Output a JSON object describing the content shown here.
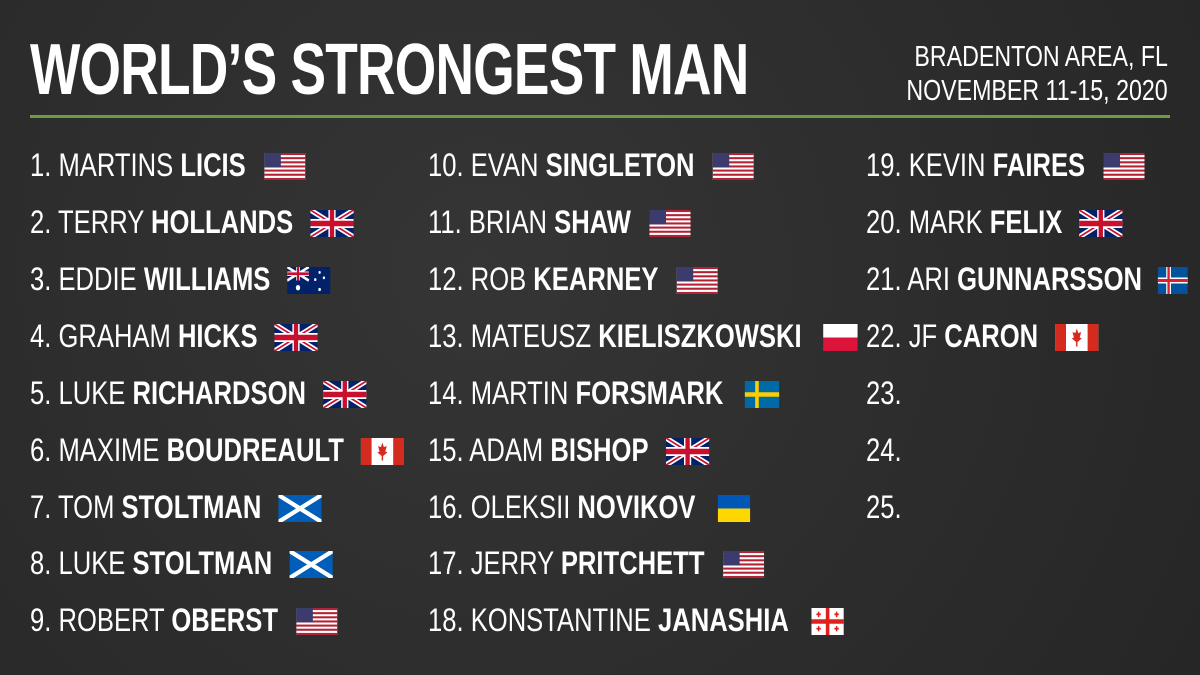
{
  "header": {
    "title": "WORLD’S STRONGEST MAN",
    "location": "BRADENTON AREA, FL",
    "dates": "NOVEMBER 11-15, 2020"
  },
  "entries": [
    {
      "number": "1.",
      "first": "MARTINS",
      "last": "LICIS"
    },
    {
      "number": "2.",
      "first": "TERRY",
      "last": "HOLLANDS"
    },
    {
      "number": "3.",
      "first": "EDDIE",
      "last": "WILLIAMS"
    },
    {
      "number": "4.",
      "first": "GRAHAM",
      "last": "HICKS"
    },
    {
      "number": "5.",
      "first": "LUKE",
      "last": "RICHARDSON"
    },
    {
      "number": "6.",
      "first": "MAXIME",
      "last": "BOUDREAULT"
    },
    {
      "number": "7.",
      "first": "TOM",
      "last": "STOLTMAN"
    },
    {
      "number": "8.",
      "first": "LUKE",
      "last": "STOLTMAN"
    },
    {
      "number": "9.",
      "first": "ROBERT",
      "last": "OBERST"
    },
    {
      "number": "10.",
      "first": "EVAN",
      "last": "SINGLETON"
    },
    {
      "number": "11.",
      "first": "BRIAN",
      "last": "SHAW"
    },
    {
      "number": "12.",
      "first": "ROB",
      "last": "KEARNEY"
    },
    {
      "number": "13.",
      "first": "MATEUSZ",
      "last": "KIELISZKOWSKI"
    },
    {
      "number": "14.",
      "first": "MARTIN",
      "last": "FORSMARK"
    },
    {
      "number": "15.",
      "first": "ADAM",
      "last": "BISHOP"
    },
    {
      "number": "16.",
      "first": "OLEKSII",
      "last": "NOVIKOV"
    },
    {
      "number": "17.",
      "first": "JERRY",
      "last": "PRITCHETT"
    },
    {
      "number": "18.",
      "first": "KONSTANTINE",
      "last": "JANASHIA"
    },
    {
      "number": "19.",
      "first": "KEVIN",
      "last": "FAIRES"
    },
    {
      "number": "20.",
      "first": "MARK",
      "last": "FELIX"
    },
    {
      "number": "21.",
      "first": "ARI",
      "last": "GUNNARSSON"
    },
    {
      "number": "22.",
      "first": "JF",
      "last": "CARON"
    },
    {
      "number": "23."
    },
    {
      "number": "24."
    },
    {
      "number": "25."
    }
  ]
}
